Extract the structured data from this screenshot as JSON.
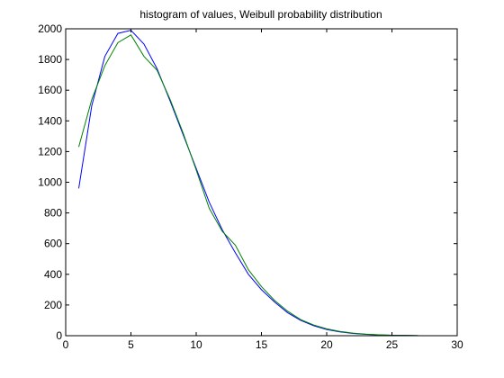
{
  "chart_data": {
    "type": "line",
    "title": "histogram of values, Weibull probability distribution",
    "xlabel": "",
    "ylabel": "",
    "xlim": [
      0,
      30
    ],
    "ylim": [
      0,
      2000
    ],
    "grid": false,
    "x_ticks": [
      0,
      5,
      10,
      15,
      20,
      25,
      30
    ],
    "y_ticks": [
      0,
      200,
      400,
      600,
      800,
      1000,
      1200,
      1400,
      1600,
      1800,
      2000
    ],
    "series": [
      {
        "color": "#0000ff",
        "x": [
          1,
          2,
          3,
          4,
          5,
          6,
          7,
          8,
          9,
          10,
          11,
          12,
          13,
          14,
          15,
          16,
          17,
          18,
          19,
          20,
          21,
          22,
          23,
          24,
          25,
          26,
          27
        ],
        "values": [
          960,
          1500,
          1820,
          1970,
          1990,
          1900,
          1740,
          1530,
          1310,
          1090,
          870,
          690,
          540,
          400,
          300,
          220,
          150,
          100,
          65,
          40,
          25,
          15,
          9,
          5,
          3,
          2,
          1
        ]
      },
      {
        "color": "#008000",
        "x": [
          1,
          2,
          3,
          4,
          5,
          6,
          7,
          8,
          9,
          10,
          11,
          12,
          13,
          14,
          15,
          16,
          17,
          18,
          19,
          20,
          21,
          22,
          23,
          24,
          25,
          26,
          27
        ],
        "values": [
          1230,
          1540,
          1760,
          1910,
          1960,
          1820,
          1730,
          1540,
          1320,
          1080,
          830,
          680,
          590,
          430,
          320,
          230,
          160,
          105,
          70,
          45,
          28,
          17,
          10,
          6,
          3,
          2,
          1
        ]
      }
    ]
  }
}
